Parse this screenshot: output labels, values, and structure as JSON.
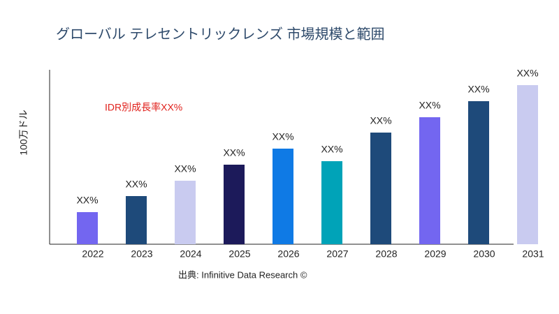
{
  "chart_data": {
    "type": "bar",
    "title": "グローバル テレセントリックレンズ 市場規模と範囲",
    "y_label": "100万ドル",
    "annotation": "IDR別成長率XX%",
    "source": "出典: Infinitive Data Research ©",
    "categories": [
      "2022",
      "2023",
      "2024",
      "2025",
      "2026",
      "2027",
      "2028",
      "2029",
      "2030",
      "2031"
    ],
    "values": [
      46,
      69,
      91,
      114,
      137,
      119,
      160,
      182,
      205,
      228
    ],
    "value_labels": [
      "XX%",
      "XX%",
      "XX%",
      "XX%",
      "XX%",
      "XX%",
      "XX%",
      "XX%",
      "XX%",
      "XX%"
    ],
    "colors": [
      "#7366f0",
      "#1e4a7a",
      "#c9cbf0",
      "#1c1a5a",
      "#0f7ae5",
      "#00a3b8",
      "#1e4a7a",
      "#7366f0",
      "#1e4a7a",
      "#c9cbf0"
    ],
    "ylim": [
      0,
      250
    ]
  }
}
